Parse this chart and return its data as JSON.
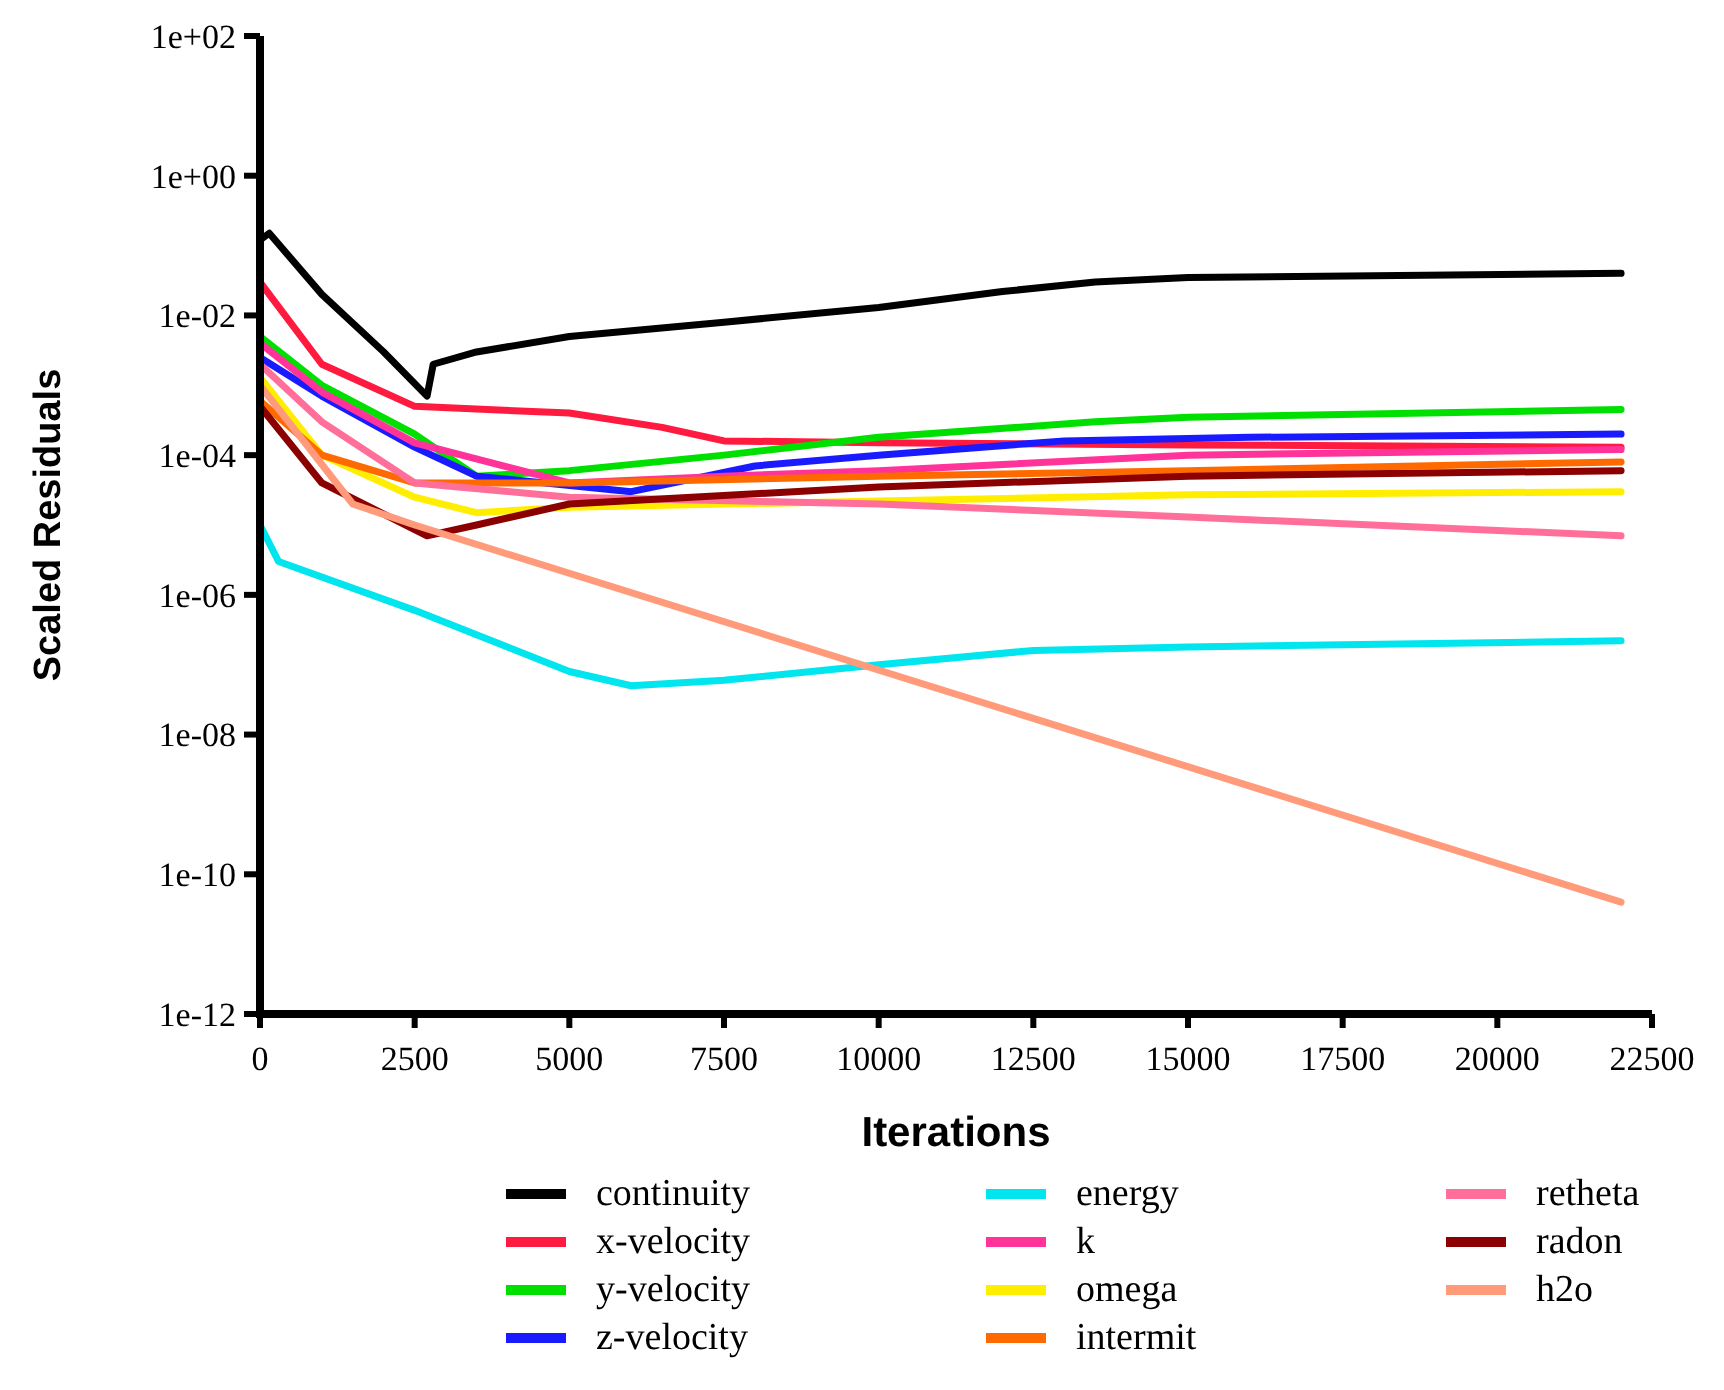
{
  "chart_data": {
    "type": "line",
    "xlabel": "Iterations",
    "ylabel": "Scaled Residuals",
    "log": "y",
    "legend": "bottom",
    "grid": false,
    "xlim": [
      0,
      22500
    ],
    "xticks": [
      0,
      2500,
      5000,
      7500,
      10000,
      12500,
      15000,
      17500,
      20000,
      22500
    ],
    "ylim": [
      1e-12,
      100
    ],
    "yticks": [
      {
        "value": 100,
        "label": "1e+02"
      },
      {
        "value": 1,
        "label": "1e+00"
      },
      {
        "value": 0.01,
        "label": "1e-02"
      },
      {
        "value": 0.0001,
        "label": "1e-04"
      },
      {
        "value": 1e-06,
        "label": "1e-06"
      },
      {
        "value": 1e-08,
        "label": "1e-08"
      },
      {
        "value": 1e-10,
        "label": "1e-10"
      },
      {
        "value": 1e-12,
        "label": "1e-12"
      }
    ],
    "series": [
      {
        "name": "continuity",
        "color": "#000000",
        "x": [
          0,
          150,
          1000,
          2000,
          2700,
          2800,
          3500,
          5000,
          7500,
          10000,
          12000,
          13500,
          15000,
          18000,
          22000
        ],
        "values": [
          0.12,
          0.15,
          0.02,
          0.003,
          0.0007,
          0.002,
          0.003,
          0.005,
          0.008,
          0.013,
          0.022,
          0.03,
          0.035,
          0.037,
          0.04
        ]
      },
      {
        "name": "x-velocity",
        "color": "#ff1a40",
        "x": [
          0,
          1000,
          2500,
          5000,
          6500,
          7500,
          10000,
          15000,
          22000
        ],
        "values": [
          0.03,
          0.002,
          0.0005,
          0.0004,
          0.00025,
          0.00016,
          0.00015,
          0.00014,
          0.00013
        ]
      },
      {
        "name": "y-velocity",
        "color": "#00e000",
        "x": [
          0,
          1000,
          2500,
          3500,
          5000,
          7500,
          10000,
          13500,
          15000,
          22000
        ],
        "values": [
          0.005,
          0.001,
          0.0002,
          5e-05,
          6e-05,
          0.0001,
          0.00018,
          0.0003,
          0.00035,
          0.00045
        ]
      },
      {
        "name": "z-velocity",
        "color": "#1a1aff",
        "x": [
          0,
          1000,
          2500,
          3500,
          6000,
          8000,
          10000,
          13000,
          16000,
          22000
        ],
        "values": [
          0.0025,
          0.0007,
          0.00013,
          5e-05,
          3e-05,
          7e-05,
          0.0001,
          0.00016,
          0.00018,
          0.0002
        ]
      },
      {
        "name": "energy",
        "color": "#00e5ee",
        "x": [
          0,
          300,
          2500,
          5000,
          6000,
          7500,
          10000,
          12500,
          15000,
          22000
        ],
        "values": [
          1e-05,
          3e-06,
          6e-07,
          8e-08,
          5e-08,
          6e-08,
          1e-07,
          1.6e-07,
          1.8e-07,
          2.2e-07
        ]
      },
      {
        "name": "k",
        "color": "#ff3399",
        "x": [
          0,
          1000,
          2500,
          5000,
          7500,
          10000,
          15000,
          22000
        ],
        "values": [
          0.004,
          0.0008,
          0.00015,
          4e-05,
          5e-05,
          6e-05,
          0.0001,
          0.00012
        ]
      },
      {
        "name": "omega",
        "color": "#ffee00",
        "x": [
          0,
          1000,
          2500,
          3500,
          5000,
          10000,
          15000,
          22000
        ],
        "values": [
          0.0013,
          0.0001,
          2.5e-05,
          1.5e-05,
          1.8e-05,
          2.2e-05,
          2.7e-05,
          3e-05
        ]
      },
      {
        "name": "intermit",
        "color": "#ff6a00",
        "x": [
          0,
          1000,
          2500,
          5000,
          10000,
          15000,
          22000
        ],
        "values": [
          0.0006,
          0.0001,
          4e-05,
          4e-05,
          5e-05,
          6e-05,
          8e-05
        ]
      },
      {
        "name": "retheta",
        "color": "#ff6f9a",
        "x": [
          0,
          1000,
          2500,
          5000,
          10000,
          15000,
          22000
        ],
        "values": [
          0.002,
          0.0003,
          4e-05,
          2.5e-05,
          2e-05,
          1.3e-05,
          7e-06
        ]
      },
      {
        "name": "radon",
        "color": "#8b0000",
        "x": [
          0,
          1000,
          2700,
          3500,
          5000,
          10000,
          15000,
          22000
        ],
        "values": [
          0.0005,
          4e-05,
          7e-06,
          1e-05,
          2e-05,
          3.5e-05,
          5e-05,
          6e-05
        ]
      },
      {
        "name": "h2o",
        "color": "#ff9a7a",
        "x": [
          0,
          1500,
          2500,
          22000
        ],
        "values": [
          0.001,
          2e-05,
          1e-05,
          4e-11
        ]
      }
    ]
  }
}
